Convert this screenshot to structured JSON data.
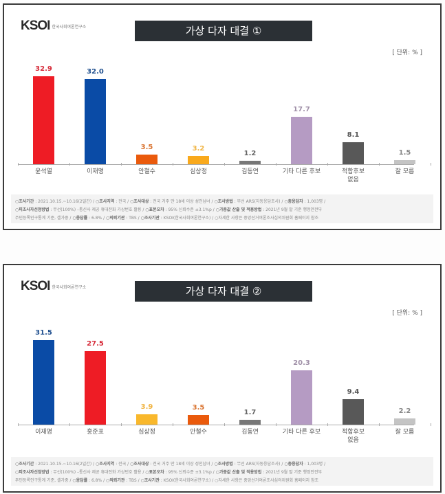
{
  "logo": {
    "mark": "KSOI",
    "subtitle": "한국사회여론연구소"
  },
  "unit_label": "[ 단위: % ]",
  "panels": [
    {
      "title": "가상 다자 대결 ①",
      "bars": [
        {
          "label": "윤석열",
          "value": "32.9",
          "color": "#ee1c25",
          "val_color": "#d62c3a"
        },
        {
          "label": "이재명",
          "value": "32.0",
          "color": "#0a4ba6",
          "val_color": "#20508f"
        },
        {
          "label": "안철수",
          "value": "3.5",
          "color": "#ea5a0c",
          "val_color": "#d9722e"
        },
        {
          "label": "심상정",
          "value": "3.2",
          "color": "#f9a91c",
          "val_color": "#f0b443"
        },
        {
          "label": "김동연",
          "value": "1.2",
          "color": "#777777",
          "val_color": "#666666"
        },
        {
          "label": "기타 다른 후보",
          "value": "17.7",
          "color": "#b59bc3",
          "val_color": "#a090a8"
        },
        {
          "label": "적합후보 없음",
          "value": "8.1",
          "color": "#585858",
          "val_color": "#555555"
        },
        {
          "label": "잘 모름",
          "value": "1.5",
          "color": "#c4c4c4",
          "val_color": "#888888"
        }
      ]
    },
    {
      "title": "가상 다자 대결 ②",
      "bars": [
        {
          "label": "이재명",
          "value": "31.5",
          "color": "#0a4ba6",
          "val_color": "#20508f"
        },
        {
          "label": "홍준표",
          "value": "27.5",
          "color": "#ee1c25",
          "val_color": "#d62c3a"
        },
        {
          "label": "심상정",
          "value": "3.9",
          "color": "#f9b82c",
          "val_color": "#f0b443"
        },
        {
          "label": "안철수",
          "value": "3.5",
          "color": "#ea5a0c",
          "val_color": "#d9722e"
        },
        {
          "label": "김동연",
          "value": "1.7",
          "color": "#777777",
          "val_color": "#666666"
        },
        {
          "label": "기타 다른 후보",
          "value": "20.3",
          "color": "#b59bc3",
          "val_color": "#a090a8"
        },
        {
          "label": "적합후보 없음",
          "value": "9.4",
          "color": "#585858",
          "val_color": "#555555"
        },
        {
          "label": "잘 모름",
          "value": "2.2",
          "color": "#c4c4c4",
          "val_color": "#888888"
        }
      ]
    }
  ],
  "footer": {
    "line1": [
      {
        "k": "○조사기간",
        "v": " : 2021.10.15.~10.16(2일간)  /  "
      },
      {
        "k": "○조사지역",
        "v": " : 전국  /  "
      },
      {
        "k": "○조사대상",
        "v": " : 전국 거주 만 18세 이상 성인남녀  /  "
      },
      {
        "k": "○조사방법",
        "v": " : 무선 ARS(자동응답조사)  /  "
      },
      {
        "k": "○총응답자",
        "v": " : 1,003명 /"
      }
    ],
    "line2": [
      {
        "k": "○피조사자선정방법",
        "v": " : 무선(100%) –통신사 제공 휴대전화 가상번호 활용  /  "
      },
      {
        "k": "○표본오차",
        "v": " : 95% 신뢰수준 ±3.1%p  /  "
      },
      {
        "k": "○가중값 산출 및 적용방법",
        "v": " : 2021년 9월 말 기준 행정안전부"
      }
    ],
    "line3": [
      {
        "k": "",
        "v": "주민등록인구통계 기준, 셀가중  /  "
      },
      {
        "k": "○응답률",
        "v": " : 6.8%  /  "
      },
      {
        "k": "○의뢰기관",
        "v": " : TBS  /  "
      },
      {
        "k": "○조사기관",
        "v": " : KSOI(한국사회여론연구소)  /  ○자세한 사항은 중앙선거여론조사심의위원회 홈페이지 참조"
      }
    ]
  },
  "chart_data": [
    {
      "type": "bar",
      "title": "가상 다자 대결 ①",
      "categories": [
        "윤석열",
        "이재명",
        "안철수",
        "심상정",
        "김동연",
        "기타 다른 후보",
        "적합후보 없음",
        "잘 모름"
      ],
      "values": [
        32.9,
        32.0,
        3.5,
        3.2,
        1.2,
        17.7,
        8.1,
        1.5
      ],
      "xlabel": "",
      "ylabel": "단위: %",
      "grid": false,
      "legend": null
    },
    {
      "type": "bar",
      "title": "가상 다자 대결 ②",
      "categories": [
        "이재명",
        "홍준표",
        "심상정",
        "안철수",
        "김동연",
        "기타 다른 후보",
        "적합후보 없음",
        "잘 모름"
      ],
      "values": [
        31.5,
        27.5,
        3.9,
        3.5,
        1.7,
        20.3,
        9.4,
        2.2
      ],
      "xlabel": "",
      "ylabel": "단위: %",
      "grid": false,
      "legend": null
    }
  ]
}
